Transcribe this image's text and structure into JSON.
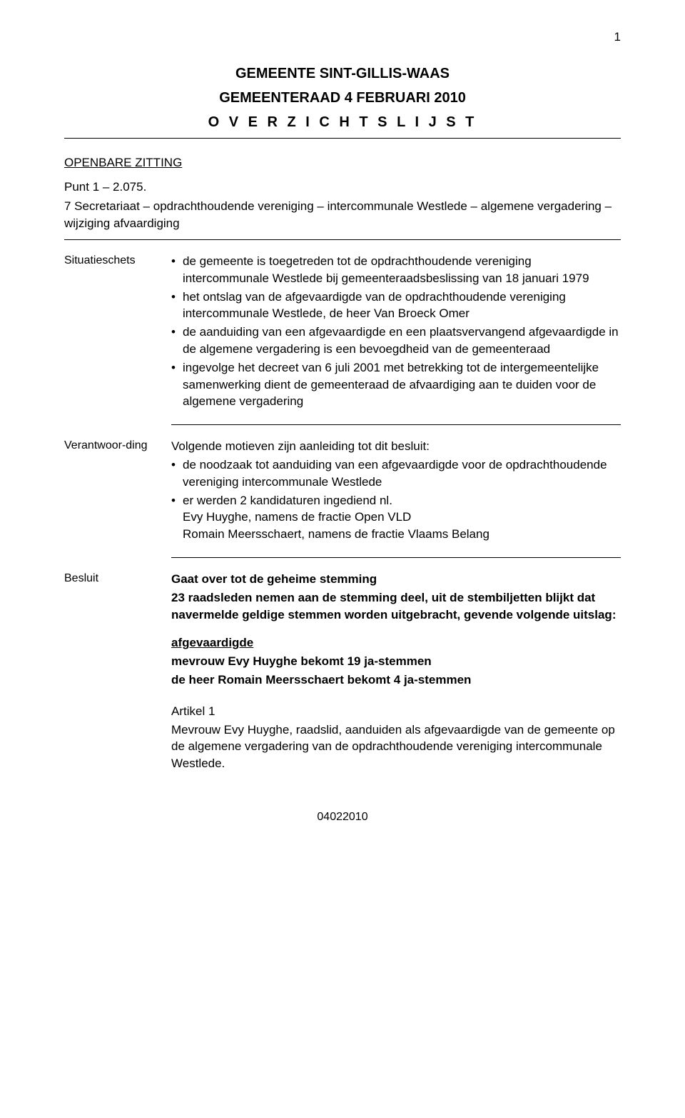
{
  "page_number": "1",
  "header": {
    "title": "GEMEENTE SINT-GILLIS-WAAS",
    "subtitle": "GEMEENTERAAD 4 FEBRUARI 2010",
    "overview": "O V E R Z I C H T S L I J S T"
  },
  "section_label": "OPENBARE ZITTING",
  "punt": {
    "heading": "Punt 1 – 2.075.",
    "title": "7 Secretariaat – opdrachthoudende vereniging – intercommunale Westlede – algemene vergadering – wijziging afvaardiging"
  },
  "situatieschets": {
    "label": "Situatieschets",
    "items": [
      "de gemeente is toegetreden tot de opdrachthoudende vereniging intercommunale Westlede bij gemeenteraadsbeslissing van 18 januari 1979",
      "het ontslag van de afgevaardigde van de opdrachthoudende vereniging intercommunale Westlede, de heer Van Broeck Omer",
      "de aanduiding van een afgevaardigde en een plaatsvervangend afgevaardigde in de algemene vergadering is een bevoegdheid van de gemeenteraad",
      "ingevolge het decreet van 6 juli 2001 met betrekking tot de intergemeentelijke samenwerking dient de gemeenteraad de afvaardiging aan te duiden voor de algemene vergadering"
    ]
  },
  "verantwoording": {
    "label": "Verantwoor-ding",
    "intro": "Volgende motieven zijn aanleiding tot dit besluit:",
    "items": [
      "de noodzaak tot aanduiding van een afgevaardigde voor de opdrachthoudende vereniging intercommunale Westlede",
      "er werden 2 kandidaturen ingediend nl.\nEvy Huyghe, namens de fractie Open VLD\nRomain Meersschaert, namens de fractie Vlaams Belang"
    ]
  },
  "besluit": {
    "label": "Besluit",
    "heading": "Gaat over tot de geheime stemming",
    "para": "23 raadsleden nemen aan de stemming deel, uit de stembiljetten blijkt dat navermelde geldige stemmen worden uitgebracht, gevende volgende uitslag:",
    "afgevaardigde_label": "afgevaardigde",
    "result1": "mevrouw Evy Huyghe bekomt 19 ja-stemmen",
    "result2": "de heer Romain Meersschaert bekomt 4 ja-stemmen",
    "artikel_label": "Artikel 1",
    "artikel_text": "Mevrouw Evy Huyghe, raadslid, aanduiden als afgevaardigde van de gemeente op de algemene vergadering van de opdrachthoudende vereniging intercommunale Westlede."
  },
  "footer": "04022010"
}
